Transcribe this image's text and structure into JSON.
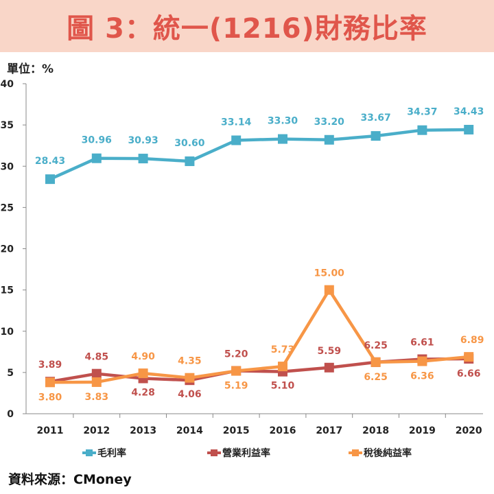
{
  "title": "圖 3：統一(1216)財務比率",
  "unit_label": "單位：%",
  "source": "資料來源：CMoney",
  "chart_data": {
    "type": "line",
    "title": "圖 3：統一(1216)財務比率",
    "xlabel": "",
    "ylabel": "單位：%",
    "ylim": [
      0,
      40
    ],
    "yticks": [
      0,
      5,
      10,
      15,
      20,
      25,
      30,
      35,
      40
    ],
    "categories": [
      "2011",
      "2012",
      "2013",
      "2014",
      "2015",
      "2016",
      "2017",
      "2018",
      "2019",
      "2020"
    ],
    "legend_position": "bottom",
    "grid": false,
    "series": [
      {
        "name": "毛利率",
        "color": "#4aaec9",
        "values": [
          28.43,
          30.96,
          30.93,
          30.6,
          33.14,
          33.3,
          33.2,
          33.67,
          34.37,
          34.43
        ],
        "labels": [
          "28.43",
          "30.96",
          "30.93",
          "30.60",
          "33.14",
          "33.30",
          "33.20",
          "33.67",
          "34.37",
          "34.43"
        ]
      },
      {
        "name": "營業利益率",
        "color": "#c0504d",
        "values": [
          3.89,
          4.85,
          4.28,
          4.06,
          5.2,
          5.1,
          5.59,
          6.25,
          6.61,
          6.66
        ],
        "labels": [
          "3.89",
          "4.85",
          "4.28",
          "4.06",
          "5.20",
          "5.10",
          "5.59",
          "6.25",
          "6.61",
          "6.66"
        ]
      },
      {
        "name": "稅後純益率",
        "color": "#f79646",
        "values": [
          3.8,
          3.83,
          4.9,
          4.35,
          5.19,
          5.73,
          15.0,
          6.25,
          6.36,
          6.89
        ],
        "labels": [
          "3.80",
          "3.83",
          "4.90",
          "4.35",
          "5.19",
          "5.73",
          "15.00",
          "6.25",
          "6.36",
          "6.89"
        ]
      }
    ]
  }
}
